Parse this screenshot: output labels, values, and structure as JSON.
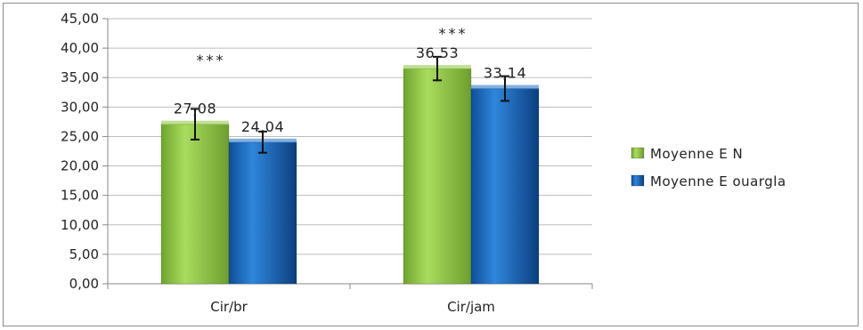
{
  "chart_data": {
    "type": "bar",
    "categories": [
      "Cir/br",
      "Cir/jam"
    ],
    "series": [
      {
        "name": "Moyenne E N",
        "values": [
          27.08,
          36.53
        ],
        "error": [
          2.6,
          2.0
        ],
        "color": "#8dc63f"
      },
      {
        "name": "Moyenne E ouargla",
        "values": [
          24.04,
          33.14
        ],
        "error": [
          1.8,
          2.1
        ],
        "color": "#1f6fc5"
      }
    ],
    "data_labels": [
      [
        "27,08",
        "36,53"
      ],
      [
        "24,04",
        "33,14"
      ]
    ],
    "significance": [
      "***",
      "***"
    ],
    "y_ticks": [
      "0,00",
      "5,00",
      "10,00",
      "15,00",
      "20,00",
      "25,00",
      "30,00",
      "35,00",
      "40,00",
      "45,00"
    ],
    "ylim": [
      0,
      45
    ],
    "grid": true,
    "legend_position": "right",
    "title": "",
    "xlabel": "",
    "ylabel": ""
  }
}
